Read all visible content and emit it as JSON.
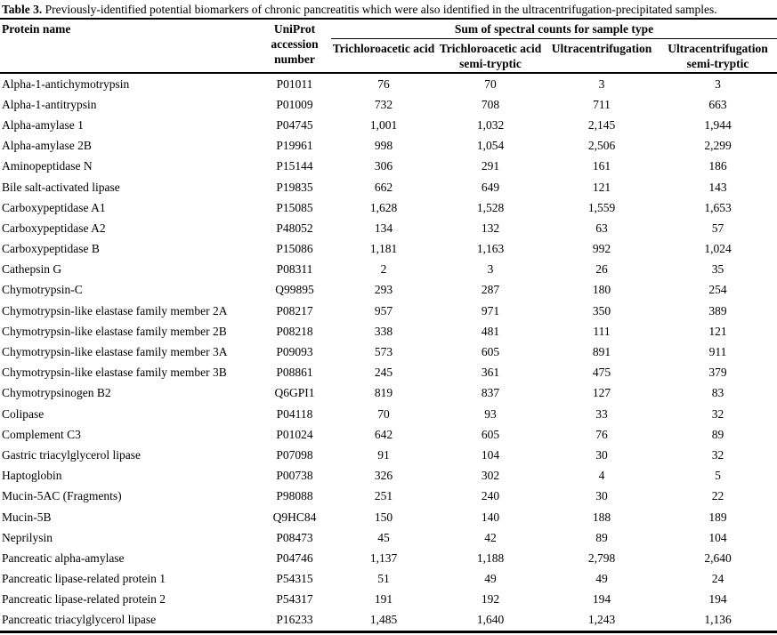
{
  "caption": {
    "label": "Table 3.",
    "text": " Previously-identified potential biomarkers of chronic pancreatitis which were also identified in the ultracentrifugation-precipitated samples."
  },
  "table": {
    "headers": {
      "protein": "Protein name",
      "accession": "UniProt accession number",
      "group": "Sum of spectral counts for sample type",
      "sub": [
        "Trichloroacetic acid",
        "Trichloroacetic acid semi-tryptic",
        "Ultracentrifugation",
        "Ultracentrifugation semi-tryptic"
      ]
    },
    "rows": [
      {
        "name": "Alpha-1-antichymotrypsin",
        "accession": "P01011",
        "values": [
          "76",
          "70",
          "3",
          "3"
        ]
      },
      {
        "name": "Alpha-1-antitrypsin",
        "accession": "P01009",
        "values": [
          "732",
          "708",
          "711",
          "663"
        ]
      },
      {
        "name": "Alpha-amylase 1",
        "accession": "P04745",
        "values": [
          "1,001",
          "1,032",
          "2,145",
          "1,944"
        ]
      },
      {
        "name": "Alpha-amylase 2B",
        "accession": "P19961",
        "values": [
          "998",
          "1,054",
          "2,506",
          "2,299"
        ]
      },
      {
        "name": "Aminopeptidase N",
        "accession": "P15144",
        "values": [
          "306",
          "291",
          "161",
          "186"
        ]
      },
      {
        "name": "Bile salt-activated lipase",
        "accession": "P19835",
        "values": [
          "662",
          "649",
          "121",
          "143"
        ]
      },
      {
        "name": "Carboxypeptidase A1",
        "accession": "P15085",
        "values": [
          "1,628",
          "1,528",
          "1,559",
          "1,653"
        ]
      },
      {
        "name": "Carboxypeptidase A2",
        "accession": "P48052",
        "values": [
          "134",
          "132",
          "63",
          "57"
        ]
      },
      {
        "name": "Carboxypeptidase B",
        "accession": "P15086",
        "values": [
          "1,181",
          "1,163",
          "992",
          "1,024"
        ]
      },
      {
        "name": "Cathepsin G",
        "accession": "P08311",
        "values": [
          "2",
          "3",
          "26",
          "35"
        ]
      },
      {
        "name": "Chymotrypsin-C",
        "accession": "Q99895",
        "values": [
          "293",
          "287",
          "180",
          "254"
        ]
      },
      {
        "name": "Chymotrypsin-like elastase family member 2A",
        "accession": "P08217",
        "values": [
          "957",
          "971",
          "350",
          "389"
        ]
      },
      {
        "name": "Chymotrypsin-like elastase family member 2B",
        "accession": "P08218",
        "values": [
          "338",
          "481",
          "111",
          "121"
        ]
      },
      {
        "name": "Chymotrypsin-like elastase family member 3A",
        "accession": "P09093",
        "values": [
          "573",
          "605",
          "891",
          "911"
        ]
      },
      {
        "name": "Chymotrypsin-like elastase family member 3B",
        "accession": "P08861",
        "values": [
          "245",
          "361",
          "475",
          "379"
        ]
      },
      {
        "name": "Chymotrypsinogen B2",
        "accession": "Q6GPI1",
        "values": [
          "819",
          "837",
          "127",
          "83"
        ]
      },
      {
        "name": "Colipase",
        "accession": "P04118",
        "values": [
          "70",
          "93",
          "33",
          "32"
        ]
      },
      {
        "name": "Complement C3",
        "accession": "P01024",
        "values": [
          "642",
          "605",
          "76",
          "89"
        ]
      },
      {
        "name": "Gastric triacylglycerol lipase",
        "accession": "P07098",
        "values": [
          "91",
          "104",
          "30",
          "32"
        ]
      },
      {
        "name": "Haptoglobin",
        "accession": "P00738",
        "values": [
          "326",
          "302",
          "4",
          "5"
        ]
      },
      {
        "name": "Mucin-5AC (Fragments)",
        "accession": "P98088",
        "values": [
          "251",
          "240",
          "30",
          "22"
        ]
      },
      {
        "name": "Mucin-5B",
        "accession": "Q9HC84",
        "values": [
          "150",
          "140",
          "188",
          "189"
        ]
      },
      {
        "name": "Neprilysin",
        "accession": "P08473",
        "values": [
          "45",
          "42",
          "89",
          "104"
        ]
      },
      {
        "name": "Pancreatic alpha-amylase",
        "accession": "P04746",
        "values": [
          "1,137",
          "1,188",
          "2,798",
          "2,640"
        ]
      },
      {
        "name": "Pancreatic lipase-related protein 1",
        "accession": "P54315",
        "values": [
          "51",
          "49",
          "49",
          "24"
        ]
      },
      {
        "name": "Pancreatic lipase-related protein 2",
        "accession": "P54317",
        "values": [
          "191",
          "192",
          "194",
          "194"
        ]
      },
      {
        "name": "Pancreatic triacylglycerol lipase",
        "accession": "P16233",
        "values": [
          "1,485",
          "1,640",
          "1,243",
          "1,136"
        ]
      }
    ]
  }
}
